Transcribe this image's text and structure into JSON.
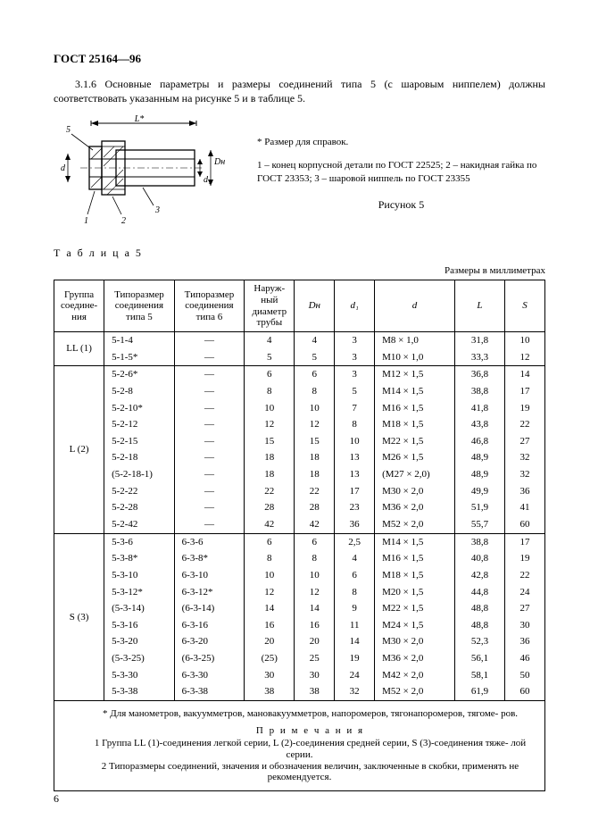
{
  "header": "ГОСТ 25164—96",
  "intro": "3.1.6 Основные параметры и размеры соединений типа 5 (с шаровым ниппелем) должны соответствовать указанным на рисунке 5 и в таблице 5.",
  "figure": {
    "note_star": "* Размер для справок.",
    "legend": "1 – конец корпусной детали по ГОСТ 22525;  2 – накидная гайка по ГОСТ 23353;  3 – шаровой ниппель по ГОСТ 23355",
    "caption": "Рисунок 5",
    "labels": {
      "L": "L*",
      "d": "d",
      "d1": "d₁",
      "Dn": "Dн",
      "n1": "1",
      "n2": "2",
      "n3": "3",
      "n5": "5"
    }
  },
  "table_label": "Т а б л и ц а  5",
  "table_units": "Размеры в миллиметрах",
  "table_headers": {
    "group": "Группа соедине-\nния",
    "type5": "Типоразмер соединения типа 5",
    "type6": "Типоразмер соединения типа 6",
    "dpipe": "Наруж-\nный диаметр трубы",
    "Dn": "Dн",
    "d1": "d₁",
    "d": "d",
    "L": "L",
    "S": "S"
  },
  "groups": [
    {
      "name": "LL (1)",
      "rows": [
        [
          "5-1-4",
          "—",
          "4",
          "4",
          "3",
          "M8 × 1,0",
          "31,8",
          "10"
        ],
        [
          "5-1-5*",
          "—",
          "5",
          "5",
          "3",
          "M10 × 1,0",
          "33,3",
          "12"
        ]
      ]
    },
    {
      "name": "L (2)",
      "rows": [
        [
          "5-2-6*",
          "—",
          "6",
          "6",
          "3",
          "M12 × 1,5",
          "36,8",
          "14"
        ],
        [
          "5-2-8",
          "—",
          "8",
          "8",
          "5",
          "M14 × 1,5",
          "38,8",
          "17"
        ],
        [
          "5-2-10*",
          "—",
          "10",
          "10",
          "7",
          "M16 × 1,5",
          "41,8",
          "19"
        ],
        [
          "5-2-12",
          "—",
          "12",
          "12",
          "8",
          "M18 × 1,5",
          "43,8",
          "22"
        ],
        [
          "5-2-15",
          "—",
          "15",
          "15",
          "10",
          "M22 × 1,5",
          "46,8",
          "27"
        ],
        [
          "5-2-18",
          "—",
          "18",
          "18",
          "13",
          "M26 × 1,5",
          "48,9",
          "32"
        ],
        [
          "(5-2-18-1)",
          "—",
          "18",
          "18",
          "13",
          "(M27 × 2,0)",
          "48,9",
          "32"
        ],
        [
          "5-2-22",
          "—",
          "22",
          "22",
          "17",
          "M30 × 2,0",
          "49,9",
          "36"
        ],
        [
          "5-2-28",
          "—",
          "28",
          "28",
          "23",
          "M36 × 2,0",
          "51,9",
          "41"
        ],
        [
          "5-2-42",
          "—",
          "42",
          "42",
          "36",
          "M52 × 2,0",
          "55,7",
          "60"
        ]
      ]
    },
    {
      "name": "S (3)",
      "rows": [
        [
          "5-3-6",
          "6-3-6",
          "6",
          "6",
          "2,5",
          "M14 × 1,5",
          "38,8",
          "17"
        ],
        [
          "5-3-8*",
          "6-3-8*",
          "8",
          "8",
          "4",
          "M16 × 1,5",
          "40,8",
          "19"
        ],
        [
          "5-3-10",
          "6-3-10",
          "10",
          "10",
          "6",
          "M18 × 1,5",
          "42,8",
          "22"
        ],
        [
          "5-3-12*",
          "6-3-12*",
          "12",
          "12",
          "8",
          "M20 × 1,5",
          "44,8",
          "24"
        ],
        [
          "(5-3-14)",
          "(6-3-14)",
          "14",
          "14",
          "9",
          "M22 × 1,5",
          "48,8",
          "27"
        ],
        [
          "5-3-16",
          "6-3-16",
          "16",
          "16",
          "11",
          "M24 × 1,5",
          "48,8",
          "30"
        ],
        [
          "5-3-20",
          "6-3-20",
          "20",
          "20",
          "14",
          "M30 × 2,0",
          "52,3",
          "36"
        ],
        [
          "(5-3-25)",
          "(6-3-25)",
          "(25)",
          "25",
          "19",
          "M36 × 2,0",
          "56,1",
          "46"
        ],
        [
          "5-3-30",
          "6-3-30",
          "30",
          "30",
          "24",
          "M42 × 2,0",
          "58,1",
          "50"
        ],
        [
          "5-3-38",
          "6-3-38",
          "38",
          "38",
          "32",
          "M52 × 2,0",
          "61,9",
          "60"
        ]
      ]
    }
  ],
  "footnote": {
    "star": "* Для манометров, вакуумметров, мановакуумметров, напоромеров, тягонапоромеров, тягоме-\nров.",
    "notes_head": "П р и м е ч а н и я",
    "note1": "1 Группа LL (1)-соединения легкой серии, L (2)-соединения средней серии, S (3)-соединения тяже-\nлой серии.",
    "note2": "2 Типоразмеры соединений, значения и обозначения величин, заключенные в скобки, применять не рекомендуется."
  },
  "page_number": "6"
}
